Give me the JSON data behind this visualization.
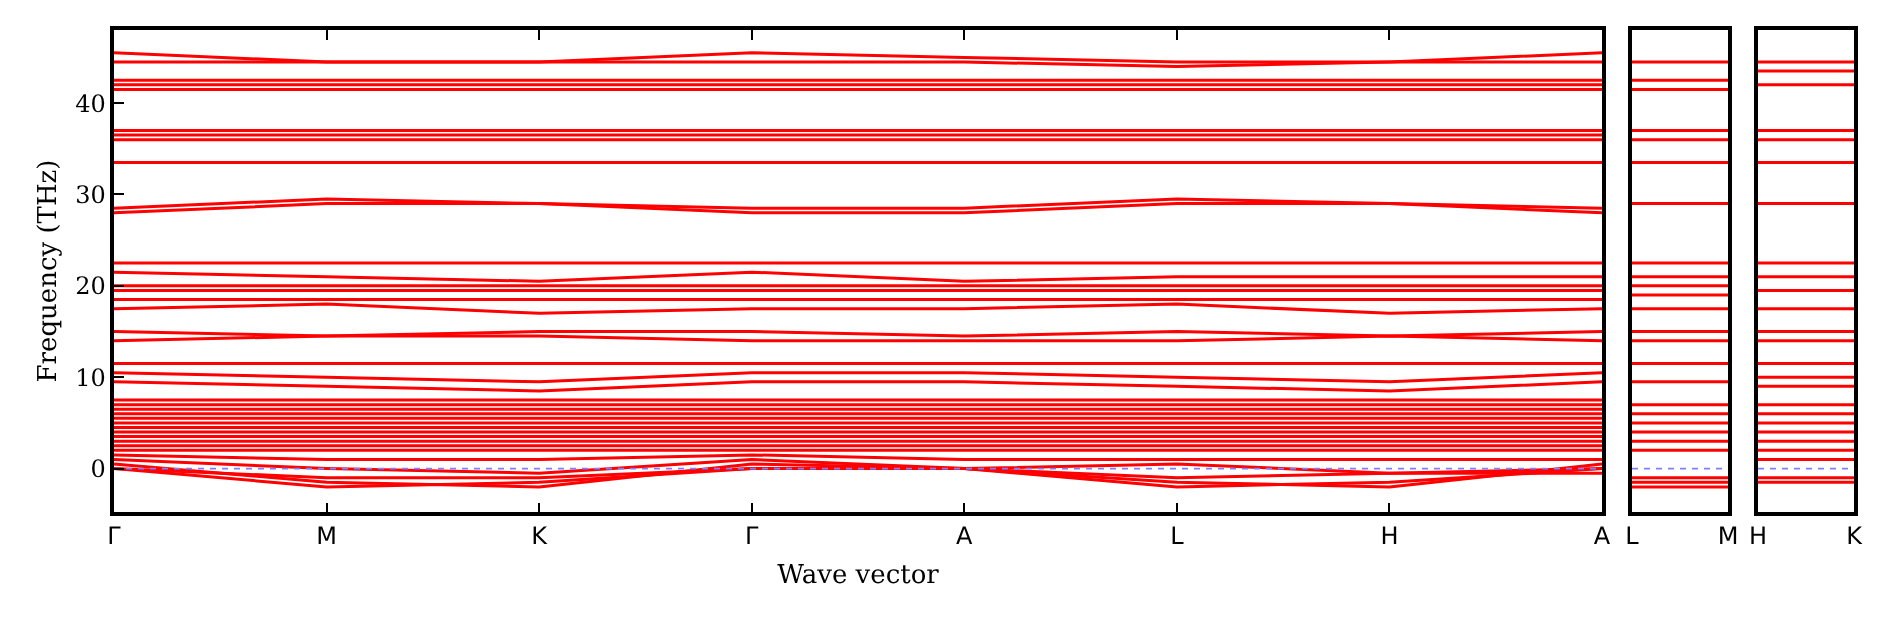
{
  "chart_data": [
    {
      "type": "line",
      "xlabel": "Wave vector",
      "ylabel": "Frequency (THz)",
      "categories": [
        "Γ",
        "M",
        "K",
        "Γ",
        "A",
        "L",
        "H",
        "A"
      ],
      "ylim": [
        -4.75,
        48
      ],
      "yticks": [
        0,
        10,
        20,
        30,
        40
      ],
      "marker": "none",
      "line_style": "solid",
      "ref_lines": [
        {
          "axis": "y",
          "value": 0,
          "color": "#7f7fff",
          "line_style": "dotted"
        }
      ],
      "series": [
        {
          "color": "#ff0000",
          "values": [
            0,
            -2,
            -1.5,
            0,
            0,
            -2,
            -1.5,
            0
          ]
        },
        {
          "color": "#ff0000",
          "values": [
            0.5,
            -1.5,
            -2,
            0.5,
            0,
            -1.5,
            -2,
            0.5
          ]
        },
        {
          "color": "#ff0000",
          "values": [
            0,
            -1,
            -1,
            0,
            0,
            -1,
            -0.5,
            -0.5
          ]
        },
        {
          "color": "#ff0000",
          "values": [
            1,
            0,
            -0.5,
            1,
            0,
            0.5,
            -0.5,
            0
          ]
        },
        {
          "color": "#ff0000",
          "values": [
            1.5,
            1,
            1,
            1.5,
            1,
            1,
            1,
            1
          ]
        },
        {
          "color": "#ff0000",
          "values": [
            2,
            2,
            2,
            2,
            2,
            2,
            2,
            2
          ]
        },
        {
          "color": "#ff0000",
          "values": [
            2.5,
            2.5,
            2.5,
            2.5,
            2.5,
            2.5,
            2.5,
            2.5
          ]
        },
        {
          "color": "#ff0000",
          "values": [
            3,
            3,
            3,
            3,
            3,
            3,
            3,
            3
          ]
        },
        {
          "color": "#ff0000",
          "values": [
            3.5,
            3.5,
            3.5,
            3.5,
            3.5,
            3.5,
            3.5,
            3.5
          ]
        },
        {
          "color": "#ff0000",
          "values": [
            4,
            4,
            4,
            4,
            4,
            4,
            4,
            4
          ]
        },
        {
          "color": "#ff0000",
          "values": [
            4.5,
            4.5,
            4.5,
            4.5,
            4.5,
            4.5,
            4.5,
            4.5
          ]
        },
        {
          "color": "#ff0000",
          "values": [
            5,
            5,
            5,
            5,
            5,
            5,
            5,
            5
          ]
        },
        {
          "color": "#ff0000",
          "values": [
            5.5,
            5.5,
            5.5,
            5.5,
            5.5,
            5.5,
            5.5,
            5.5
          ]
        },
        {
          "color": "#ff0000",
          "values": [
            6,
            6,
            6,
            6,
            6,
            6,
            6,
            6
          ]
        },
        {
          "color": "#ff0000",
          "values": [
            6.5,
            6.5,
            6.5,
            6.5,
            6.5,
            6.5,
            6.5,
            6.5
          ]
        },
        {
          "color": "#ff0000",
          "values": [
            7,
            7,
            7,
            7,
            7,
            7,
            7,
            7
          ]
        },
        {
          "color": "#ff0000",
          "values": [
            7.5,
            7.5,
            7.5,
            7.5,
            7.5,
            7.5,
            7.5,
            7.5
          ]
        },
        {
          "color": "#ff0000",
          "values": [
            9.5,
            9,
            8.5,
            9.5,
            9.5,
            9,
            8.5,
            9.5
          ]
        },
        {
          "color": "#ff0000",
          "values": [
            10.5,
            10,
            9.5,
            10.5,
            10.5,
            10,
            9.5,
            10.5
          ]
        },
        {
          "color": "#ff0000",
          "values": [
            11.5,
            11.5,
            11.5,
            11.5,
            11.5,
            11.5,
            11.5,
            11.5
          ]
        },
        {
          "color": "#ff0000",
          "values": [
            14,
            14.5,
            14.5,
            14,
            14,
            14,
            14.5,
            14
          ]
        },
        {
          "color": "#ff0000",
          "values": [
            15,
            14.5,
            15,
            15,
            14.5,
            15,
            14.5,
            15
          ]
        },
        {
          "color": "#ff0000",
          "values": [
            17.5,
            18,
            17,
            17.5,
            17.5,
            18,
            17,
            17.5
          ]
        },
        {
          "color": "#ff0000",
          "values": [
            18.5,
            18.5,
            18.5,
            18.5,
            18.5,
            18.5,
            18.5,
            18.5
          ]
        },
        {
          "color": "#ff0000",
          "values": [
            19.5,
            19.5,
            19.5,
            19.5,
            19.5,
            19.5,
            19.5,
            19.5
          ]
        },
        {
          "color": "#ff0000",
          "values": [
            20,
            20,
            20,
            20,
            20,
            20,
            20,
            20
          ]
        },
        {
          "color": "#ff0000",
          "values": [
            21.5,
            21,
            20.5,
            21.5,
            20.5,
            21,
            21,
            21
          ]
        },
        {
          "color": "#ff0000",
          "values": [
            22.5,
            22.5,
            22.5,
            22.5,
            22.5,
            22.5,
            22.5,
            22.5
          ]
        },
        {
          "color": "#ff0000",
          "values": [
            28.5,
            29.5,
            29,
            28.5,
            28.5,
            29.5,
            29,
            28.5
          ]
        },
        {
          "color": "#ff0000",
          "values": [
            28,
            29,
            29,
            28,
            28,
            29,
            29,
            28
          ]
        },
        {
          "color": "#ff0000",
          "values": [
            33.5,
            33.5,
            33.5,
            33.5,
            33.5,
            33.5,
            33.5,
            33.5
          ]
        },
        {
          "color": "#ff0000",
          "values": [
            36,
            36,
            36,
            36,
            36,
            36,
            36,
            36
          ]
        },
        {
          "color": "#ff0000",
          "values": [
            36.5,
            36.5,
            36.5,
            36.5,
            36.5,
            36.5,
            36.5,
            36.5
          ]
        },
        {
          "color": "#ff0000",
          "values": [
            37,
            37,
            37,
            37,
            37,
            37,
            37,
            37
          ]
        },
        {
          "color": "#ff0000",
          "values": [
            41.5,
            41.5,
            41.5,
            41.5,
            41.5,
            41.5,
            41.5,
            41.5
          ]
        },
        {
          "color": "#ff0000",
          "values": [
            42,
            42,
            42,
            42,
            42,
            42,
            42,
            42
          ]
        },
        {
          "color": "#ff0000",
          "values": [
            42.5,
            42.5,
            42.5,
            42.5,
            42.5,
            42.5,
            42.5,
            42.5
          ]
        },
        {
          "color": "#ff0000",
          "values": [
            44.5,
            44.5,
            44.5,
            44.5,
            44.5,
            44,
            44.5,
            44.5
          ]
        },
        {
          "color": "#ff0000",
          "values": [
            45.5,
            44.5,
            44.5,
            45.5,
            45,
            44.5,
            44.5,
            45.5
          ]
        }
      ]
    },
    {
      "type": "line",
      "categories": [
        "L",
        "M"
      ],
      "ylim": [
        -4.75,
        48
      ],
      "yticks": [
        0,
        10,
        20,
        30,
        40
      ],
      "tick_labels": "x",
      "marker": "none",
      "line_style": "solid",
      "ref_lines": [
        {
          "axis": "y",
          "value": 0,
          "color": "#7f7fff",
          "line_style": "dotted"
        }
      ],
      "series": [
        {
          "color": "#ff0000",
          "values": [
            -2,
            -2
          ]
        },
        {
          "color": "#ff0000",
          "values": [
            -1.5,
            -1.5
          ]
        },
        {
          "color": "#ff0000",
          "values": [
            -1,
            -1
          ]
        },
        {
          "color": "#ff0000",
          "values": [
            2,
            2
          ]
        },
        {
          "color": "#ff0000",
          "values": [
            3,
            3
          ]
        },
        {
          "color": "#ff0000",
          "values": [
            4,
            4
          ]
        },
        {
          "color": "#ff0000",
          "values": [
            5,
            5
          ]
        },
        {
          "color": "#ff0000",
          "values": [
            6,
            6
          ]
        },
        {
          "color": "#ff0000",
          "values": [
            7,
            7
          ]
        },
        {
          "color": "#ff0000",
          "values": [
            9.5,
            9.5
          ]
        },
        {
          "color": "#ff0000",
          "values": [
            11.5,
            11.5
          ]
        },
        {
          "color": "#ff0000",
          "values": [
            14,
            14
          ]
        },
        {
          "color": "#ff0000",
          "values": [
            15,
            15
          ]
        },
        {
          "color": "#ff0000",
          "values": [
            17.5,
            17.5
          ]
        },
        {
          "color": "#ff0000",
          "values": [
            19,
            19
          ]
        },
        {
          "color": "#ff0000",
          "values": [
            20,
            20
          ]
        },
        {
          "color": "#ff0000",
          "values": [
            21,
            21
          ]
        },
        {
          "color": "#ff0000",
          "values": [
            22.5,
            22.5
          ]
        },
        {
          "color": "#ff0000",
          "values": [
            29,
            29
          ]
        },
        {
          "color": "#ff0000",
          "values": [
            33.5,
            33.5
          ]
        },
        {
          "color": "#ff0000",
          "values": [
            36,
            36
          ]
        },
        {
          "color": "#ff0000",
          "values": [
            37,
            37
          ]
        },
        {
          "color": "#ff0000",
          "values": [
            41.5,
            41.5
          ]
        },
        {
          "color": "#ff0000",
          "values": [
            42.5,
            42.5
          ]
        },
        {
          "color": "#ff0000",
          "values": [
            44.5,
            44.5
          ]
        }
      ]
    },
    {
      "type": "line",
      "categories": [
        "H",
        "K"
      ],
      "ylim": [
        -4.75,
        48
      ],
      "yticks": [
        0,
        10,
        20,
        30,
        40
      ],
      "tick_labels": "x",
      "marker": "none",
      "line_style": "solid",
      "ref_lines": [
        {
          "axis": "y",
          "value": 0,
          "color": "#7f7fff",
          "line_style": "dotted"
        }
      ],
      "series": [
        {
          "color": "#ff0000",
          "values": [
            -1.5,
            -1.5
          ]
        },
        {
          "color": "#ff0000",
          "values": [
            -1,
            -1
          ]
        },
        {
          "color": "#ff0000",
          "values": [
            1,
            1
          ]
        },
        {
          "color": "#ff0000",
          "values": [
            2,
            2
          ]
        },
        {
          "color": "#ff0000",
          "values": [
            3,
            3
          ]
        },
        {
          "color": "#ff0000",
          "values": [
            4,
            4
          ]
        },
        {
          "color": "#ff0000",
          "values": [
            5,
            5
          ]
        },
        {
          "color": "#ff0000",
          "values": [
            6,
            6
          ]
        },
        {
          "color": "#ff0000",
          "values": [
            7,
            7
          ]
        },
        {
          "color": "#ff0000",
          "values": [
            9,
            9
          ]
        },
        {
          "color": "#ff0000",
          "values": [
            10,
            10
          ]
        },
        {
          "color": "#ff0000",
          "values": [
            11.5,
            11.5
          ]
        },
        {
          "color": "#ff0000",
          "values": [
            14,
            14
          ]
        },
        {
          "color": "#ff0000",
          "values": [
            15,
            15
          ]
        },
        {
          "color": "#ff0000",
          "values": [
            17.5,
            17.5
          ]
        },
        {
          "color": "#ff0000",
          "values": [
            19.5,
            19.5
          ]
        },
        {
          "color": "#ff0000",
          "values": [
            21,
            21
          ]
        },
        {
          "color": "#ff0000",
          "values": [
            22.5,
            22.5
          ]
        },
        {
          "color": "#ff0000",
          "values": [
            29,
            29
          ]
        },
        {
          "color": "#ff0000",
          "values": [
            33.5,
            33.5
          ]
        },
        {
          "color": "#ff0000",
          "values": [
            36,
            36
          ]
        },
        {
          "color": "#ff0000",
          "values": [
            37,
            37
          ]
        },
        {
          "color": "#ff0000",
          "values": [
            42,
            42
          ]
        },
        {
          "color": "#ff0000",
          "values": [
            43.5,
            43.5
          ]
        },
        {
          "color": "#ff0000",
          "values": [
            44.5,
            44.5
          ]
        }
      ]
    }
  ]
}
